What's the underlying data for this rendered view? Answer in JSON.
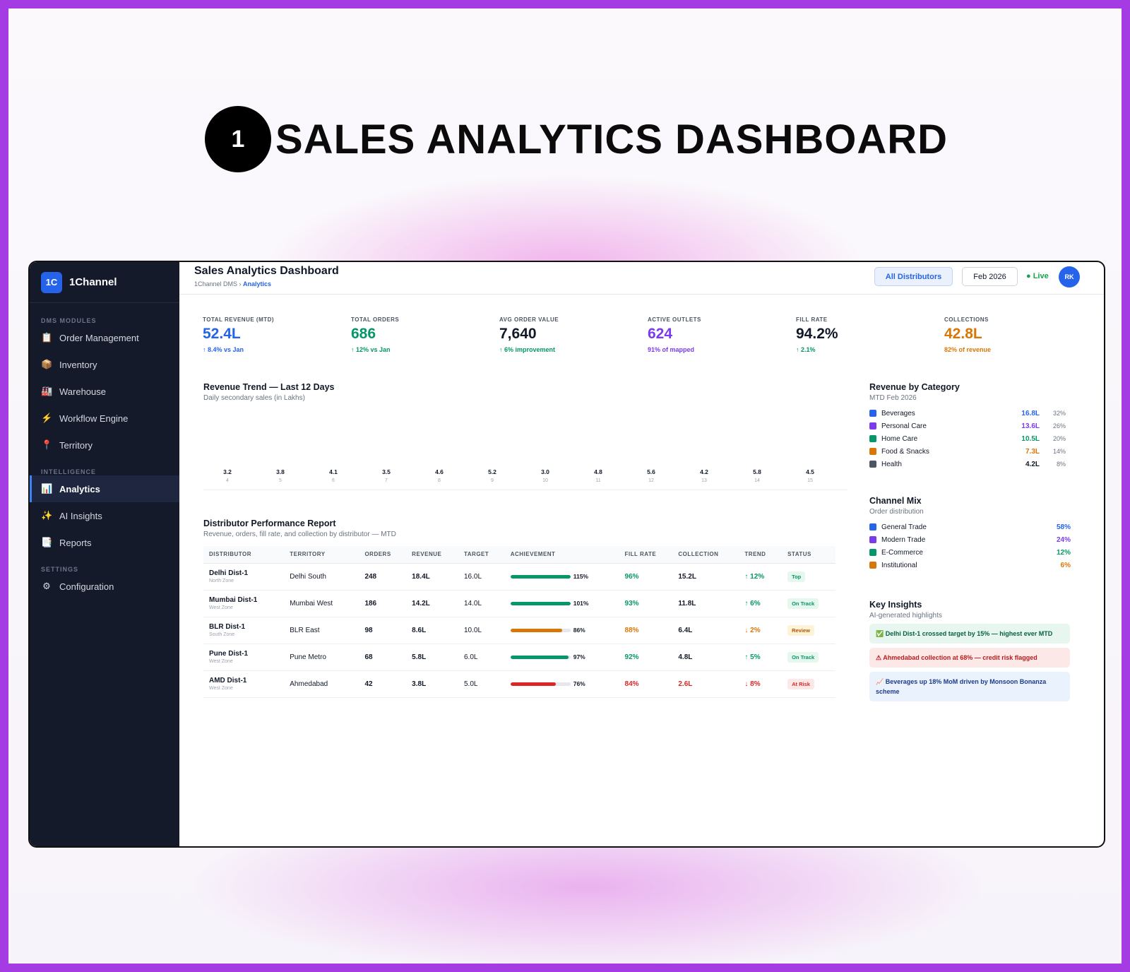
{
  "hero": {
    "number": "1",
    "title": "SALES ANALYTICS DASHBOARD"
  },
  "sidebar": {
    "brand_logo": "1C",
    "brand_name": "1Channel",
    "sections": [
      {
        "label": "DMS MODULES",
        "items": [
          {
            "icon": "clipboard-icon",
            "glyph": "📋",
            "label": "Order Management"
          },
          {
            "icon": "package-icon",
            "glyph": "📦",
            "label": "Inventory"
          },
          {
            "icon": "warehouse-icon",
            "glyph": "🏭",
            "label": "Warehouse"
          },
          {
            "icon": "lightning-icon",
            "glyph": "⚡",
            "label": "Workflow Engine"
          },
          {
            "icon": "pin-icon",
            "glyph": "📍",
            "label": "Territory"
          }
        ]
      },
      {
        "label": "INTELLIGENCE",
        "items": [
          {
            "icon": "bar-chart-icon",
            "glyph": "📊",
            "label": "Analytics",
            "active": true
          },
          {
            "icon": "sparkles-icon",
            "glyph": "✨",
            "label": "AI Insights"
          },
          {
            "icon": "report-icon",
            "glyph": "📑",
            "label": "Reports"
          }
        ]
      },
      {
        "label": "SETTINGS",
        "items": [
          {
            "icon": "gear-icon",
            "glyph": "⚙",
            "label": "Configuration"
          }
        ]
      }
    ]
  },
  "header": {
    "title": "Sales Analytics Dashboard",
    "breadcrumb_root": "1Channel DMS ›",
    "breadcrumb_current": "Analytics",
    "distributor_filter": "All Distributors",
    "period": "Feb 2026",
    "live_label": "● Live",
    "avatar": "RK"
  },
  "kpis": [
    {
      "label": "TOTAL REVENUE (MTD)",
      "value": "52.4L",
      "sub": "↑ 8.4% vs Jan",
      "color": "#2563eb"
    },
    {
      "label": "TOTAL ORDERS",
      "value": "686",
      "sub": "↑ 12% vs Jan",
      "color": "#059669"
    },
    {
      "label": "AVG ORDER VALUE",
      "value": "7,640",
      "sub": "↑ 6% improvement",
      "color": "#111827"
    },
    {
      "label": "ACTIVE OUTLETS",
      "value": "624",
      "sub": "91% of mapped",
      "color": "#7c3aed"
    },
    {
      "label": "FILL RATE",
      "value": "94.2%",
      "sub": "↑ 2.1%",
      "color": "#111827"
    },
    {
      "label": "COLLECTIONS",
      "value": "42.8L",
      "sub": "82% of revenue",
      "color": "#d97706"
    }
  ],
  "revenue_trend": {
    "title": "Revenue Trend — Last 12 Days",
    "subtitle": "Daily secondary sales (in Lakhs)"
  },
  "chart_data": {
    "type": "bar",
    "title": "Revenue Trend — Last 12 Days",
    "subtitle": "Daily secondary sales (in Lakhs)",
    "categories": [
      "4",
      "5",
      "6",
      "7",
      "8",
      "9",
      "10",
      "11",
      "12",
      "13",
      "14",
      "15"
    ],
    "values": [
      3.2,
      3.8,
      4.1,
      3.5,
      4.6,
      5.2,
      3.0,
      4.8,
      5.6,
      4.2,
      5.8,
      4.5
    ],
    "value_labels": [
      "3.2",
      "3.8",
      "4.1",
      "3.5",
      "4.6",
      "5.2",
      "3.0",
      "4.8",
      "5.6",
      "4.2",
      "5.8",
      "4.5"
    ]
  },
  "distributor_report": {
    "title": "Distributor Performance Report",
    "subtitle": "Revenue, orders, fill rate, and collection by distributor — MTD",
    "columns": [
      "DISTRIBUTOR",
      "TERRITORY",
      "ORDERS",
      "REVENUE",
      "TARGET",
      "ACHIEVEMENT",
      "FILL RATE",
      "COLLECTION",
      "TREND",
      "STATUS"
    ],
    "rows": [
      {
        "name": "Delhi Dist-1",
        "zone": "North Zone",
        "territory": "Delhi South",
        "orders": "248",
        "revenue": "18.4L",
        "target": "16.0L",
        "achievement": 115,
        "achievement_label": "115%",
        "bar_color": "#059669",
        "fill_rate": "96%",
        "fill_color": "#059669",
        "collection": "15.2L",
        "collection_color": "#111827",
        "trend": "↑ 12%",
        "trend_color": "#059669",
        "status": "Top",
        "status_color": "#059669",
        "status_bg": "#e6f7ee"
      },
      {
        "name": "Mumbai Dist-1",
        "zone": "West Zone",
        "territory": "Mumbai West",
        "orders": "186",
        "revenue": "14.2L",
        "target": "14.0L",
        "achievement": 101,
        "achievement_label": "101%",
        "bar_color": "#059669",
        "fill_rate": "93%",
        "fill_color": "#059669",
        "collection": "11.8L",
        "collection_color": "#111827",
        "trend": "↑ 6%",
        "trend_color": "#059669",
        "status": "On Track",
        "status_color": "#059669",
        "status_bg": "#e6f7ee"
      },
      {
        "name": "BLR Dist-1",
        "zone": "South Zone",
        "territory": "BLR East",
        "orders": "98",
        "revenue": "8.6L",
        "target": "10.0L",
        "achievement": 86,
        "achievement_label": "86%",
        "bar_color": "#d97706",
        "fill_rate": "88%",
        "fill_color": "#d97706",
        "collection": "6.4L",
        "collection_color": "#111827",
        "trend": "↓ 2%",
        "trend_color": "#d97706",
        "status": "Review",
        "status_color": "#b45309",
        "status_bg": "#fdf3d7"
      },
      {
        "name": "Pune Dist-1",
        "zone": "West Zone",
        "territory": "Pune Metro",
        "orders": "68",
        "revenue": "5.8L",
        "target": "6.0L",
        "achievement": 97,
        "achievement_label": "97%",
        "bar_color": "#059669",
        "fill_rate": "92%",
        "fill_color": "#059669",
        "collection": "4.8L",
        "collection_color": "#111827",
        "trend": "↑ 5%",
        "trend_color": "#059669",
        "status": "On Track",
        "status_color": "#059669",
        "status_bg": "#e6f7ee"
      },
      {
        "name": "AMD Dist-1",
        "zone": "West Zone",
        "territory": "Ahmedabad",
        "orders": "42",
        "revenue": "3.8L",
        "target": "5.0L",
        "achievement": 76,
        "achievement_label": "76%",
        "bar_color": "#dc2626",
        "fill_rate": "84%",
        "fill_color": "#dc2626",
        "collection": "2.6L",
        "collection_color": "#dc2626",
        "trend": "↓ 8%",
        "trend_color": "#dc2626",
        "status": "At Risk",
        "status_color": "#dc2626",
        "status_bg": "#fde8e8"
      }
    ]
  },
  "revenue_by_category": {
    "title": "Revenue by Category",
    "subtitle": "MTD Feb 2026",
    "items": [
      {
        "label": "Beverages",
        "amount": "16.8L",
        "percent": "32%",
        "color": "#2563eb"
      },
      {
        "label": "Personal Care",
        "amount": "13.6L",
        "percent": "26%",
        "color": "#7c3aed"
      },
      {
        "label": "Home Care",
        "amount": "10.5L",
        "percent": "20%",
        "color": "#059669"
      },
      {
        "label": "Food & Snacks",
        "amount": "7.3L",
        "percent": "14%",
        "color": "#d97706"
      },
      {
        "label": "Health",
        "amount": "4.2L",
        "percent": "8%",
        "color": "#4b5563"
      }
    ]
  },
  "channel_mix": {
    "title": "Channel Mix",
    "subtitle": "Order distribution",
    "items": [
      {
        "label": "General Trade",
        "percent": "58%",
        "color": "#2563eb"
      },
      {
        "label": "Modern Trade",
        "percent": "24%",
        "color": "#7c3aed"
      },
      {
        "label": "E-Commerce",
        "percent": "12%",
        "color": "#059669"
      },
      {
        "label": "Institutional",
        "percent": "6%",
        "color": "#d97706"
      }
    ]
  },
  "key_insights": {
    "title": "Key Insights",
    "subtitle": "AI-generated highlights",
    "items": [
      {
        "text": "✅ Delhi Dist-1 crossed target by 15% — highest ever MTD",
        "color": "#065f46",
        "bg": "#e7f6ee"
      },
      {
        "text": "⚠ Ahmedabad collection at 68% — credit risk flagged",
        "color": "#b91c1c",
        "bg": "#fde8e8"
      },
      {
        "text": "📈 Beverages up 18% MoM driven by Monsoon Bonanza scheme",
        "color": "#1e3a8a",
        "bg": "#eaf2fd"
      }
    ]
  }
}
